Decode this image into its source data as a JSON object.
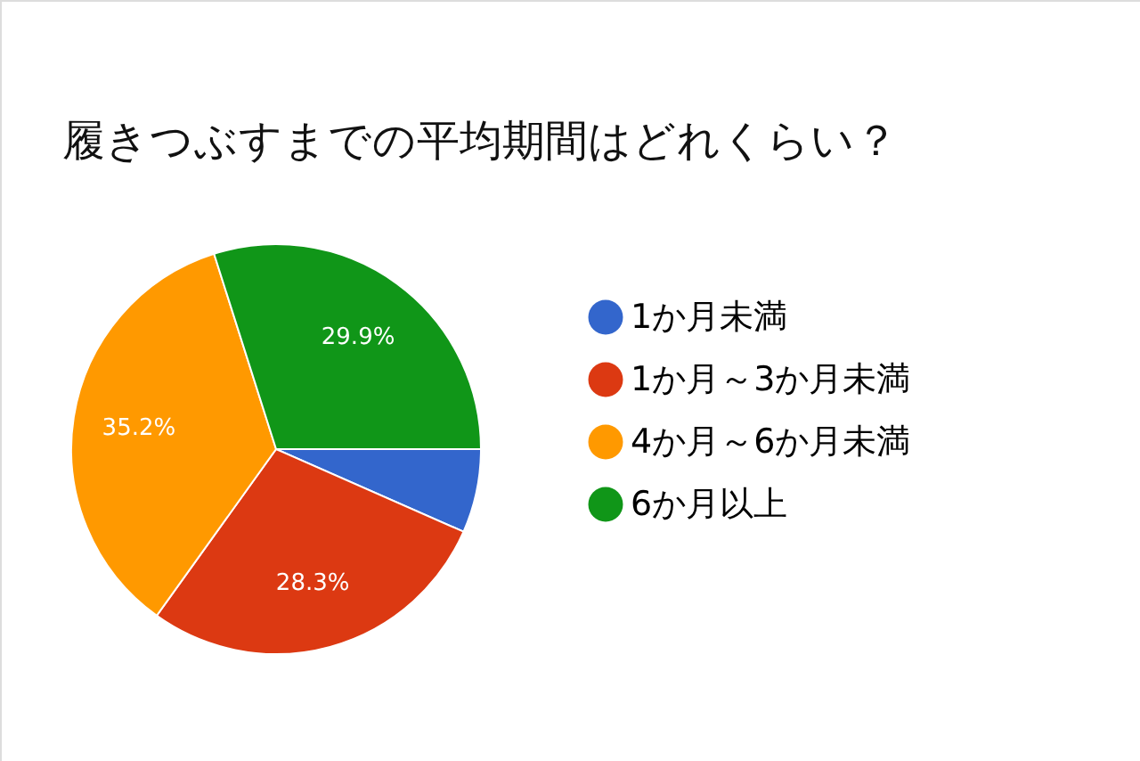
{
  "chart_data": {
    "type": "pie",
    "title": "履きつぶすまでの平均期間はどれくらい？",
    "categories": [
      "1か月未満",
      "1か月～3か月未満",
      "4か月～6か月未満",
      "6か月以上"
    ],
    "values": [
      6.6,
      28.3,
      35.2,
      29.9
    ],
    "value_labels": [
      null,
      "28.3%",
      "35.2%",
      "29.9%"
    ],
    "colors": [
      "#3366cc",
      "#dc3912",
      "#ff9900",
      "#109618"
    ],
    "legend": "right"
  }
}
